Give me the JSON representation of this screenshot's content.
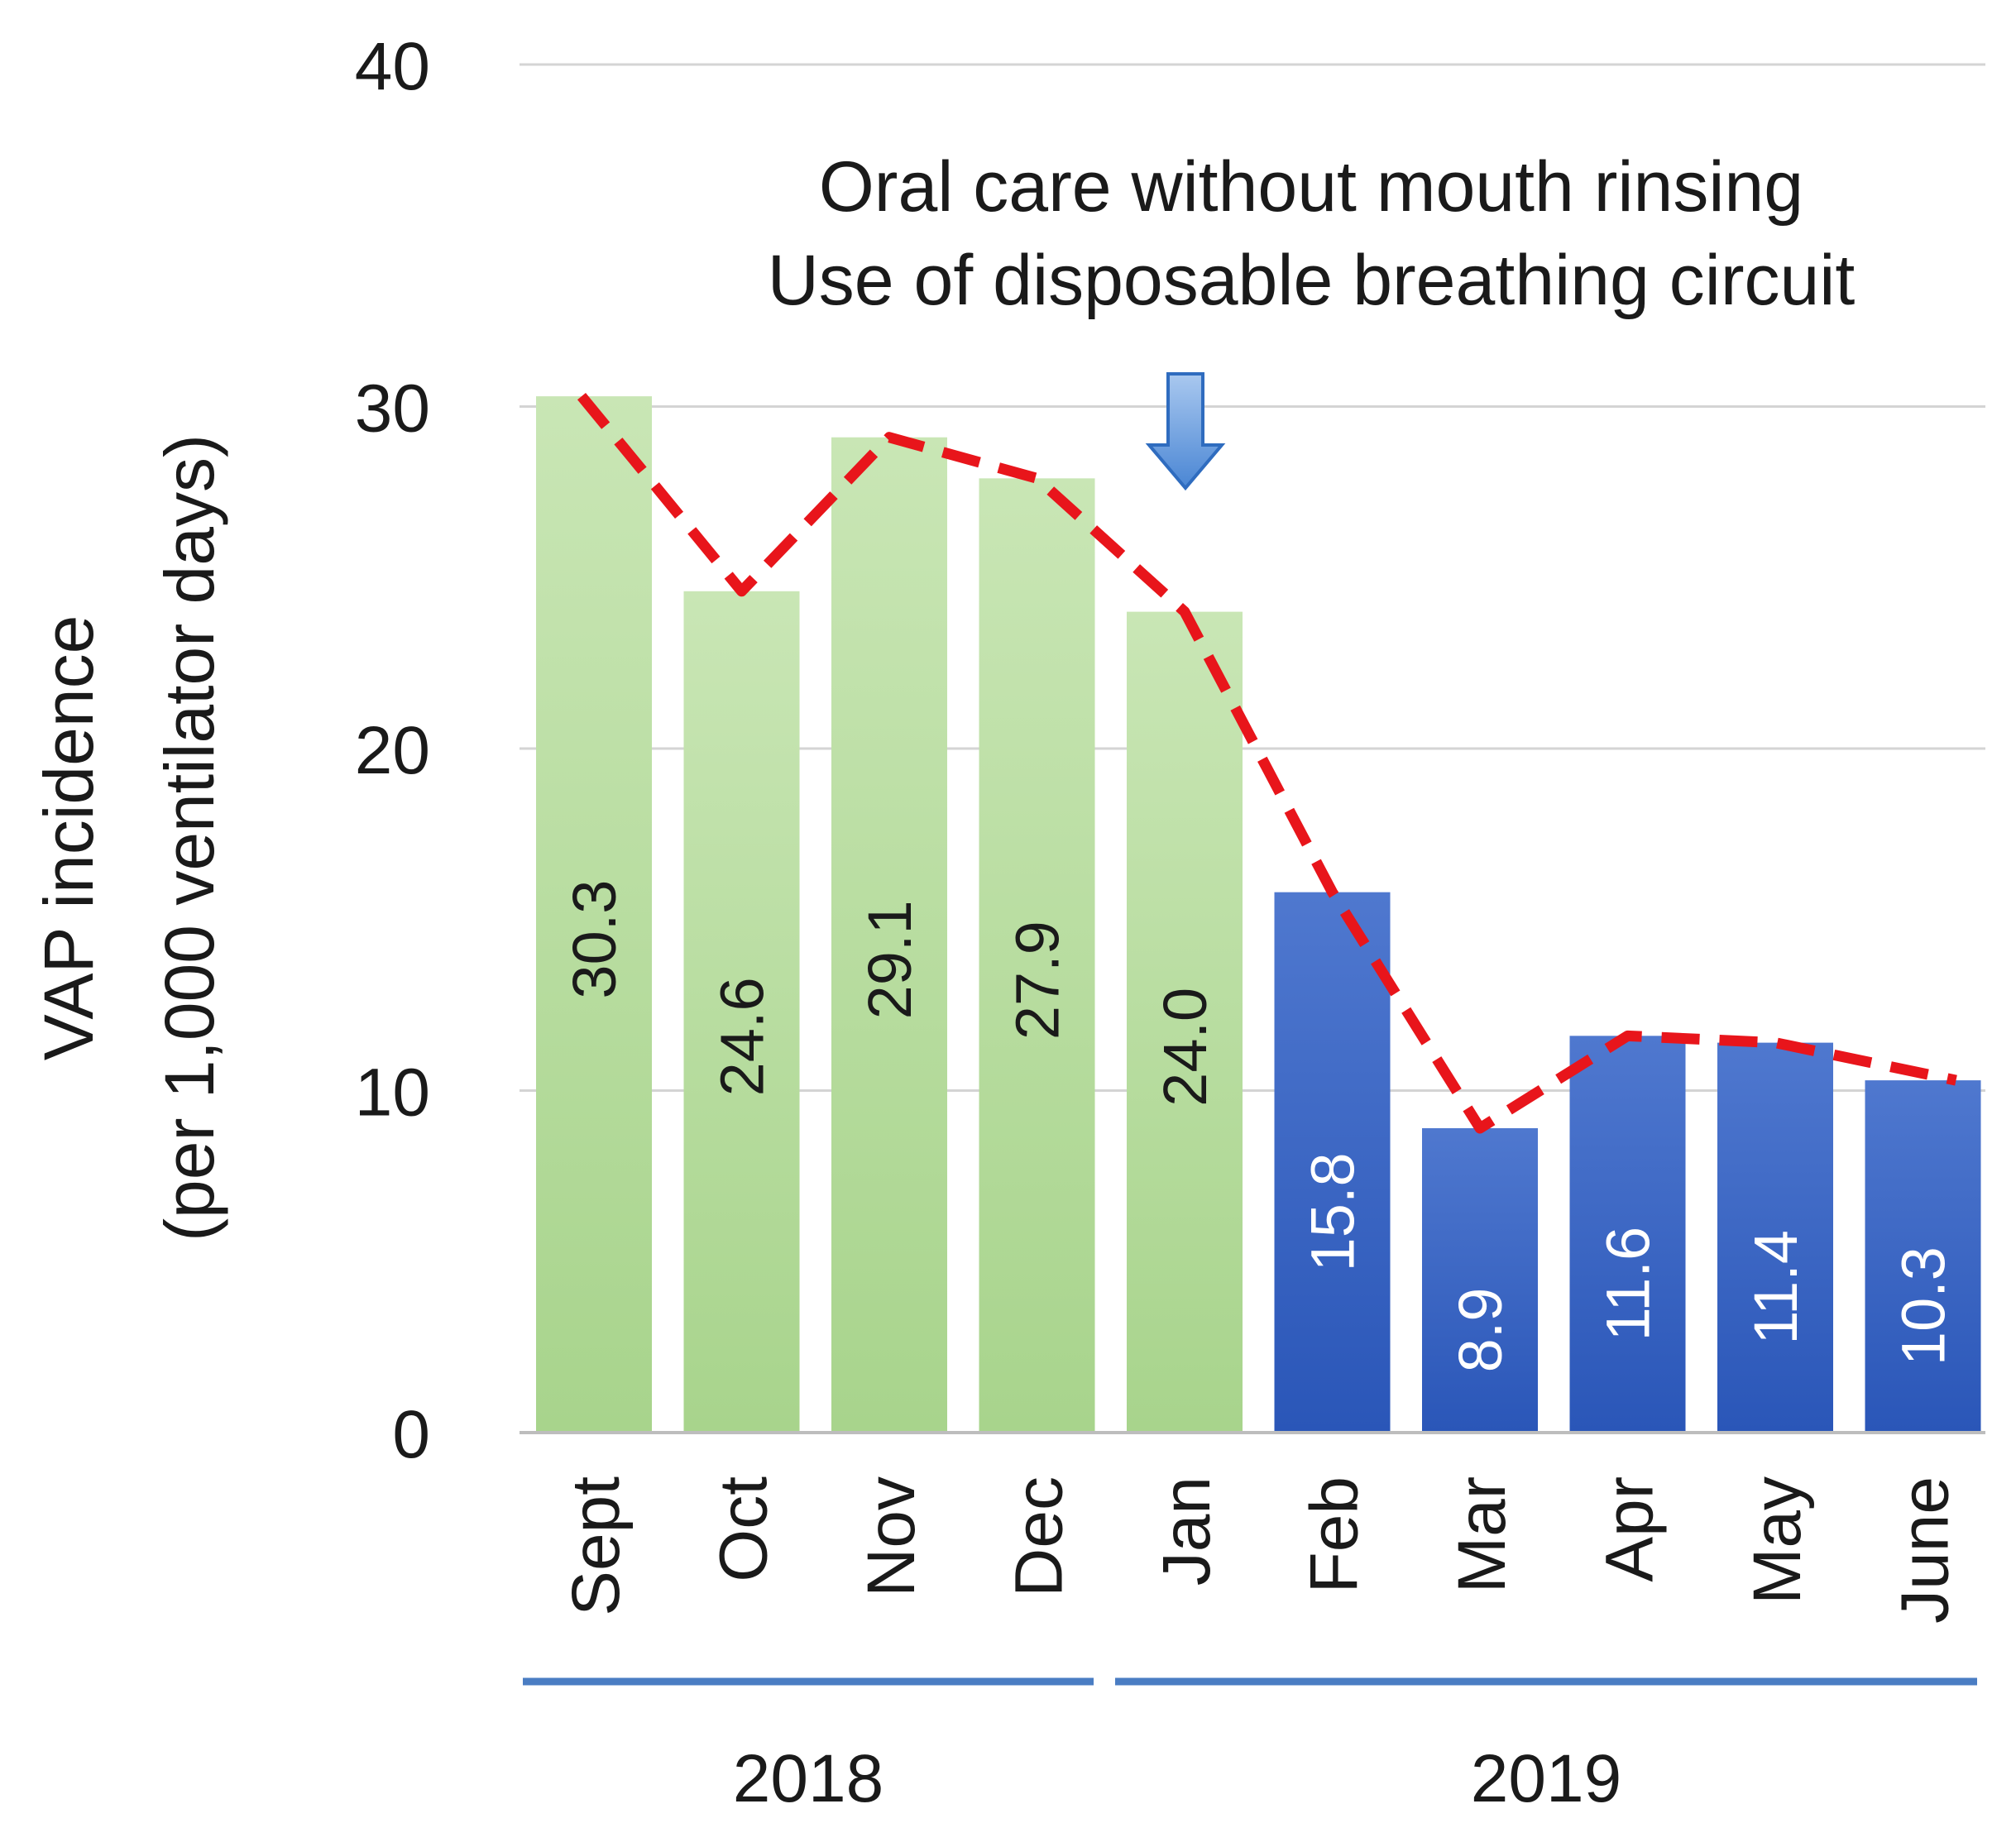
{
  "chart_data": {
    "type": "bar",
    "title": "",
    "xlabel": "",
    "ylabel_line1": "VAP incidence",
    "ylabel_line2": "(per 1,000 ventilator days)",
    "ylim": [
      0,
      40
    ],
    "yticks": [
      0,
      10,
      20,
      30,
      40
    ],
    "yticks_text": [
      "0",
      "10",
      "20",
      "30",
      "40"
    ],
    "grid": true,
    "categories": [
      "Sept",
      "Oct",
      "Nov",
      "Dec",
      "Jan",
      "Feb",
      "Mar",
      "Apr",
      "May",
      "June"
    ],
    "values": [
      30.3,
      24.6,
      29.1,
      27.9,
      24.0,
      15.8,
      8.9,
      11.6,
      11.4,
      10.3
    ],
    "value_labels": [
      "30.3",
      "24.6",
      "29.1",
      "27.9",
      "24.0",
      "15.8",
      "8.9",
      "11.6",
      "11.4",
      "10.3"
    ],
    "bar_groups": [
      "pre",
      "pre",
      "pre",
      "pre",
      "pre",
      "post",
      "post",
      "post",
      "post",
      "post"
    ],
    "trend_line": {
      "style": "dashed",
      "color": "#e8151b",
      "values": [
        30.3,
        24.6,
        29.1,
        27.9,
        24.0,
        15.8,
        8.9,
        11.6,
        11.4,
        10.3
      ]
    },
    "intervention": {
      "at_category": "Jan",
      "line1": "Oral care without mouth rinsing",
      "line2": "Use of disposable breathing circuit"
    },
    "year_groups": [
      {
        "label": "2018",
        "from": "Sept",
        "to": "Dec"
      },
      {
        "label": "2019",
        "from": "Jan",
        "to": "June"
      }
    ],
    "colors": {
      "pre_top": "#c9e6b5",
      "pre_bottom": "#a8d48c",
      "post_top": "#4f78cf",
      "post_bottom": "#2a56b8",
      "pre_label": "#1a1a1a",
      "post_label": "#ffffff",
      "grid": "#d4d4d4",
      "axis": "#bdbdbd",
      "year_bar": "#4a7dc3",
      "arrow_top": "#a9c8ef",
      "arrow_bottom": "#4a86d4",
      "arrow_stroke": "#2f6cbf"
    }
  }
}
